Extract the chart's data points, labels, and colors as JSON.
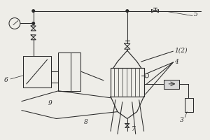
{
  "bg_color": "#eeede8",
  "line_color": "#2a2a2a",
  "label_texts": {
    "1_2": "1(2)",
    "3": "3",
    "4": "4",
    "5": "5",
    "6": "6",
    "7": "7",
    "8": "8",
    "9": "9"
  }
}
